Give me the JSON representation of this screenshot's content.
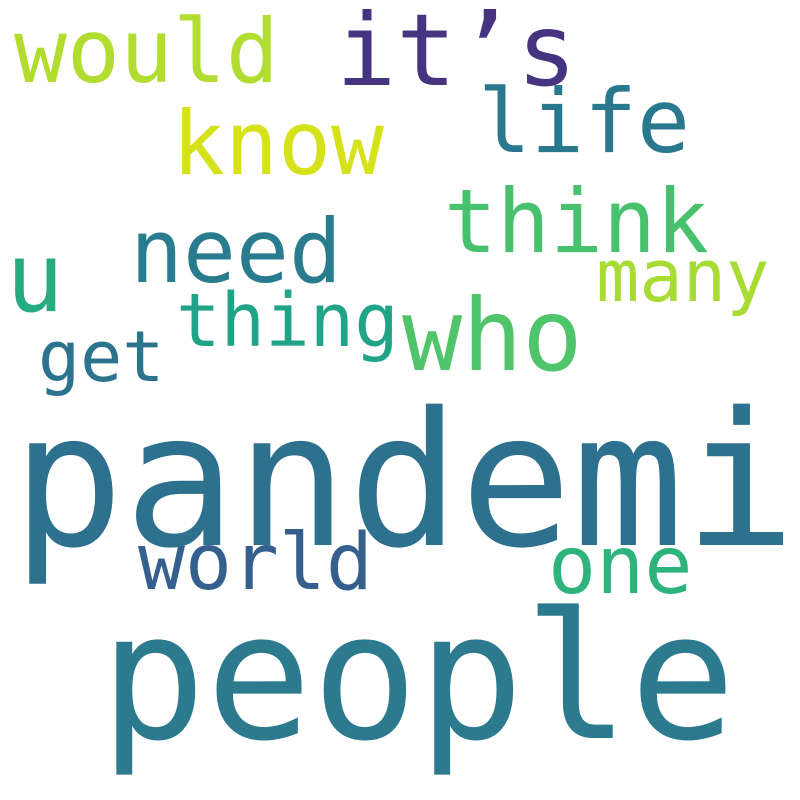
{
  "words": {
    "pandemic": {
      "text": "pandemic",
      "color": "#2d718e"
    },
    "people": {
      "text": "people",
      "color": "#2c7a8e"
    },
    "who": {
      "text": "who",
      "color": "#50c46a"
    },
    "its": {
      "text": "it’s",
      "color": "#463480"
    },
    "would": {
      "text": "would",
      "color": "#b0dd2f"
    },
    "know": {
      "text": "know",
      "color": "#d5e21a"
    },
    "need": {
      "text": "need",
      "color": "#287c8e"
    },
    "think": {
      "text": "think",
      "color": "#48c16e"
    },
    "thing": {
      "text": "thing",
      "color": "#20a386"
    },
    "world": {
      "text": "world",
      "color": "#355f8d"
    },
    "one": {
      "text": "one",
      "color": "#2eb37c"
    },
    "life": {
      "text": "life",
      "color": "#2a788e"
    },
    "many": {
      "text": "many",
      "color": "#a8db34"
    },
    "u": {
      "text": "u",
      "color": "#25ab82"
    },
    "get": {
      "text": "get",
      "color": "#2c738e"
    }
  }
}
